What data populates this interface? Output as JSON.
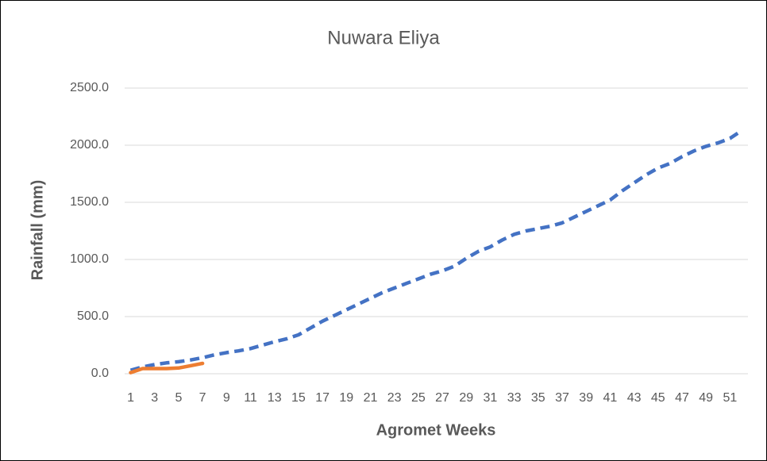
{
  "chart_data": {
    "type": "line",
    "title": "Nuwara Eliya",
    "x_label": "Agromet Weeks",
    "y_label": "Rainfall (mm)",
    "categories": [
      "1",
      null,
      "3",
      null,
      "5",
      null,
      "7",
      null,
      "9",
      null,
      "11",
      null,
      "13",
      null,
      "15",
      null,
      "17",
      null,
      "19",
      null,
      "21",
      null,
      "23",
      null,
      "25",
      null,
      "27",
      null,
      "29",
      null,
      "31",
      null,
      "33",
      null,
      "35",
      null,
      "37",
      null,
      "39",
      null,
      "41",
      null,
      "43",
      null,
      "45",
      null,
      "47",
      null,
      "49",
      null,
      "51",
      null
    ],
    "series": [
      {
        "color": "#4472c4",
        "style": "dashed",
        "values": [
          30,
          60,
          80,
          95,
          105,
          120,
          140,
          165,
          185,
          200,
          220,
          250,
          280,
          305,
          340,
          400,
          460,
          510,
          560,
          610,
          660,
          710,
          750,
          790,
          830,
          870,
          900,
          940,
          1010,
          1070,
          1110,
          1170,
          1220,
          1250,
          1270,
          1290,
          1320,
          1370,
          1420,
          1470,
          1520,
          1600,
          1670,
          1740,
          1800,
          1840,
          1900,
          1950,
          1990,
          2020,
          2060,
          2130
        ]
      },
      {
        "color": "#ed7d31",
        "style": "solid",
        "values": [
          10,
          45,
          45,
          45,
          50,
          70,
          90,
          null,
          null,
          null,
          null,
          null,
          null,
          null,
          null,
          null,
          null,
          null,
          null,
          null,
          null,
          null,
          null,
          null,
          null,
          null,
          null,
          null,
          null,
          null,
          null,
          null,
          null,
          null,
          null,
          null,
          null,
          null,
          null,
          null,
          null,
          null,
          null,
          null,
          null,
          null,
          null,
          null,
          null,
          null,
          null,
          null
        ]
      }
    ],
    "ylim": [
      0,
      2500
    ],
    "yticks": [
      {
        "value": 0,
        "label": "0.0"
      },
      {
        "value": 500,
        "label": "500.0"
      },
      {
        "value": 1000,
        "label": "1000.0"
      },
      {
        "value": 1500,
        "label": "1500.0"
      },
      {
        "value": 2000,
        "label": "2000.0"
      },
      {
        "value": 2500,
        "label": "2500.0"
      }
    ],
    "grid": true
  }
}
